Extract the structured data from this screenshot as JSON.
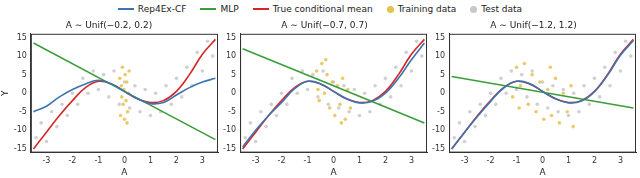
{
  "chart_data": [
    {
      "type": "scatter",
      "title": "A ∼ Unif(−0.2, 0.2)",
      "x_label": "A",
      "y_label": "Y",
      "xlim": [
        -3.6,
        3.6
      ],
      "xticks": [
        -3,
        -2,
        -1,
        0,
        1,
        2,
        3
      ],
      "ylim": [
        -16,
        16
      ],
      "yticks": [
        -15,
        -10,
        -5,
        0,
        5,
        10,
        15
      ],
      "grid": false,
      "series": [
        {
          "name": "Rep4Ex-CF",
          "type": "line",
          "color": "#3b75af",
          "x": [
            -3.5,
            -3,
            -2.5,
            -2,
            -1.5,
            -1,
            -0.5,
            0,
            0.5,
            1,
            1.5,
            2,
            2.5,
            3,
            3.5
          ],
          "values": [
            -5,
            -3.5,
            -1,
            1,
            2.5,
            3.5,
            2.5,
            0.5,
            -1.5,
            -2.8,
            -2.5,
            -0.5,
            1.5,
            3,
            4
          ]
        },
        {
          "name": "MLP",
          "type": "line",
          "color": "#3a9d3a",
          "x": [
            -3.5,
            3.5
          ],
          "values": [
            13.5,
            -12.5
          ]
        },
        {
          "name": "True conditional mean",
          "type": "line",
          "color": "#d62728",
          "x": [
            -3.5,
            -3,
            -2.5,
            -2,
            -1.5,
            -1,
            -0.5,
            0,
            0.5,
            1,
            1.5,
            2,
            2.5,
            3,
            3.5
          ],
          "values": [
            -15,
            -10.5,
            -6,
            -2,
            1.5,
            3.2,
            2.5,
            0.5,
            -1.5,
            -2.5,
            -2,
            0.5,
            5,
            10.5,
            14.5
          ]
        },
        {
          "name": "Training data",
          "type": "scatter",
          "color": "#e3c24d",
          "x": [
            -0.18,
            -0.15,
            -0.12,
            -0.08,
            -0.05,
            -0.02,
            0,
            0.03,
            0.06,
            0.09,
            0.12,
            0.15,
            0.18,
            -0.1,
            0.1
          ],
          "values": [
            4,
            -6,
            2,
            7,
            -3,
            1,
            -7,
            5,
            -2,
            3,
            -5,
            0,
            6,
            -1,
            -8
          ]
        },
        {
          "name": "Test data",
          "type": "scatter",
          "color": "#c8c8c8",
          "x": [
            -3.4,
            -3.2,
            -3,
            -2.8,
            -2.6,
            -2.4,
            -2.2,
            -2,
            -1.8,
            -1.6,
            -1.4,
            -1.2,
            -1,
            -0.8,
            -0.6,
            -0.4,
            -0.2,
            0,
            0.2,
            0.4,
            0.6,
            0.8,
            1,
            1.2,
            1.4,
            1.6,
            1.8,
            2,
            2.2,
            2.4,
            2.6,
            2.8,
            3,
            3.2,
            3.4
          ],
          "values": [
            -12,
            -8,
            -13,
            -5,
            -9,
            -3,
            -6,
            0,
            -3,
            4,
            0,
            6,
            1,
            5,
            -1,
            6,
            -3,
            3,
            -4,
            2,
            -5,
            1,
            -6,
            0,
            -5,
            2,
            -3,
            4,
            -1,
            7,
            2,
            11,
            6,
            14,
            10
          ]
        }
      ]
    },
    {
      "type": "scatter",
      "title": "A ∼ Unif(−0.7, 0.7)",
      "x_label": "A",
      "xlim": [
        -3.6,
        3.6
      ],
      "xticks": [
        -3,
        -2,
        -1,
        0,
        1,
        2,
        3
      ],
      "ylim": [
        -16,
        16
      ],
      "yticks": [
        -15,
        -10,
        -5,
        0,
        5,
        10,
        15
      ],
      "grid": false,
      "series": [
        {
          "name": "Rep4Ex-CF",
          "type": "line",
          "color": "#3b75af",
          "x": [
            -3.5,
            -3,
            -2.5,
            -2,
            -1.5,
            -1,
            -0.5,
            0,
            0.5,
            1,
            1.5,
            2,
            2.5,
            3,
            3.5
          ],
          "values": [
            -14.5,
            -10,
            -6,
            -2.5,
            1.2,
            3.2,
            2.5,
            0.5,
            -1.5,
            -2.6,
            -2.2,
            0,
            4,
            9,
            13.5
          ]
        },
        {
          "name": "MLP",
          "type": "line",
          "color": "#3a9d3a",
          "x": [
            -3.5,
            3.5
          ],
          "values": [
            12,
            -8
          ]
        },
        {
          "name": "True conditional mean",
          "type": "line",
          "color": "#d62728",
          "x": [
            -3.5,
            -3,
            -2.5,
            -2,
            -1.5,
            -1,
            -0.5,
            0,
            0.5,
            1,
            1.5,
            2,
            2.5,
            3,
            3.5
          ],
          "values": [
            -15,
            -10.5,
            -6,
            -2,
            1.5,
            3.2,
            2.5,
            0.5,
            -1.5,
            -2.5,
            -2,
            0.5,
            5,
            10.5,
            14.5
          ]
        },
        {
          "name": "Training data",
          "type": "scatter",
          "color": "#e3c24d",
          "x": [
            -0.65,
            -0.55,
            -0.45,
            -0.35,
            -0.25,
            -0.15,
            -0.05,
            0.05,
            0.15,
            0.25,
            0.35,
            0.45,
            0.55,
            0.65,
            -0.6,
            0.3,
            -0.3
          ],
          "values": [
            6,
            -2,
            8,
            0,
            5,
            -4,
            3,
            -6,
            2,
            -3,
            4,
            -7,
            1,
            -4,
            1,
            -8,
            9
          ]
        },
        {
          "name": "Test data",
          "type": "scatter",
          "color": "#c8c8c8",
          "x": [
            -3.4,
            -3.2,
            -3,
            -2.8,
            -2.6,
            -2.4,
            -2.2,
            -2,
            -1.8,
            -1.6,
            -1.4,
            -1.2,
            -1,
            -0.8,
            -0.6,
            -0.4,
            -0.2,
            0,
            0.2,
            0.4,
            0.6,
            0.8,
            1,
            1.2,
            1.4,
            1.6,
            1.8,
            2,
            2.2,
            2.4,
            2.6,
            2.8,
            3,
            3.2,
            3.4
          ],
          "values": [
            -12,
            -8,
            -13,
            -5,
            -9,
            -3,
            -6,
            0,
            -3,
            4,
            0,
            6,
            1,
            5,
            -1,
            6,
            -3,
            3,
            -4,
            2,
            -5,
            1,
            -6,
            0,
            -5,
            2,
            -3,
            4,
            -1,
            7,
            2,
            11,
            6,
            14,
            10
          ]
        }
      ]
    },
    {
      "type": "scatter",
      "title": "A ∼ Unif(−1.2, 1.2)",
      "x_label": "A",
      "xlim": [
        -3.6,
        3.6
      ],
      "xticks": [
        -3,
        -2,
        -1,
        0,
        1,
        2,
        3
      ],
      "ylim": [
        -16,
        16
      ],
      "yticks": [
        -15,
        -10,
        -5,
        0,
        5,
        10,
        15
      ],
      "grid": false,
      "series": [
        {
          "name": "Rep4Ex-CF",
          "type": "line",
          "color": "#3b75af",
          "x": [
            -3.5,
            -3,
            -2.5,
            -2,
            -1.5,
            -1,
            -0.5,
            0,
            0.5,
            1,
            1.5,
            2,
            2.5,
            3,
            3.5
          ],
          "values": [
            -15,
            -10.5,
            -6.2,
            -2.2,
            1.4,
            3.2,
            2.6,
            0.5,
            -1.5,
            -2.6,
            -2.1,
            0.4,
            4.8,
            10.2,
            14.2
          ]
        },
        {
          "name": "MLP",
          "type": "line",
          "color": "#3a9d3a",
          "x": [
            -3.5,
            3.5
          ],
          "values": [
            4.5,
            -4
          ]
        },
        {
          "name": "True conditional mean",
          "type": "line",
          "color": "#d62728",
          "x": [
            -3.5,
            -3,
            -2.5,
            -2,
            -1.5,
            -1,
            -0.5,
            0,
            0.5,
            1,
            1.5,
            2,
            2.5,
            3,
            3.5
          ],
          "values": [
            -15,
            -10.5,
            -6,
            -2,
            1.5,
            3.2,
            2.5,
            0.5,
            -1.5,
            -2.5,
            -2,
            0.5,
            5,
            10.5,
            14.5
          ]
        },
        {
          "name": "Training data",
          "type": "scatter",
          "color": "#e3c24d",
          "x": [
            -1.15,
            -1.0,
            -0.85,
            -0.7,
            -0.55,
            -0.4,
            -0.25,
            -0.1,
            0.05,
            0.2,
            0.35,
            0.5,
            0.65,
            0.8,
            0.95,
            1.1,
            1.18,
            -0.9,
            0.3
          ],
          "values": [
            -1,
            7,
            2,
            8,
            -3,
            5,
            -5,
            3,
            -7,
            1,
            -6,
            4,
            -8,
            0,
            -5,
            2,
            -9,
            -4,
            7
          ]
        },
        {
          "name": "Test data",
          "type": "scatter",
          "color": "#c8c8c8",
          "x": [
            -3.4,
            -3.2,
            -3,
            -2.8,
            -2.6,
            -2.4,
            -2.2,
            -2,
            -1.8,
            -1.6,
            -1.4,
            -1.2,
            -1,
            -0.8,
            -0.6,
            -0.4,
            -0.2,
            0,
            0.2,
            0.4,
            0.6,
            0.8,
            1,
            1.2,
            1.4,
            1.6,
            1.8,
            2,
            2.2,
            2.4,
            2.6,
            2.8,
            3,
            3.2,
            3.4
          ],
          "values": [
            -12,
            -8,
            -13,
            -5,
            -9,
            -3,
            -6,
            0,
            -3,
            4,
            0,
            6,
            1,
            5,
            -1,
            6,
            -3,
            3,
            -4,
            2,
            -5,
            1,
            -6,
            0,
            -5,
            2,
            -3,
            4,
            -1,
            7,
            2,
            11,
            6,
            14,
            10
          ]
        }
      ]
    }
  ]
}
